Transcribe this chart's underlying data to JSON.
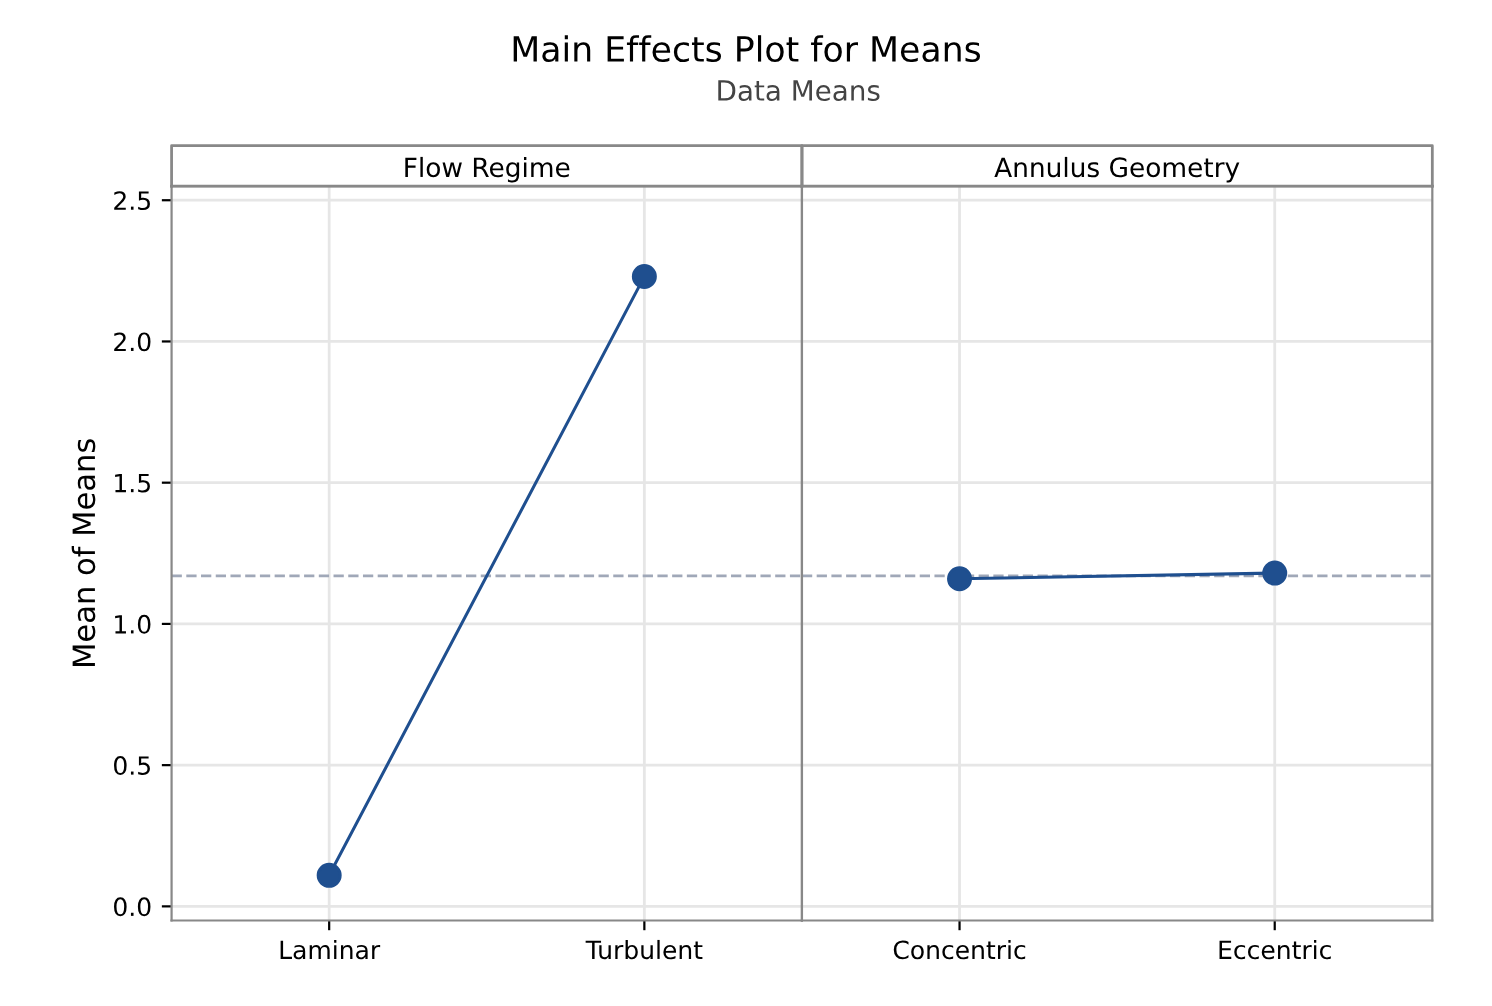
{
  "chart_data": [
    {
      "type": "line",
      "title": "Main Effects Plot for Means",
      "subtitle": "Data Means",
      "annotations": [
        "Flow Regime"
      ],
      "ylabel": "Mean of Means",
      "categories": [
        "Laminar",
        "Turbulent"
      ],
      "series": [
        {
          "color": "#1f4f8f",
          "values": [
            0.11,
            2.23
          ]
        }
      ],
      "ylim": [
        -0.05,
        2.55
      ],
      "yticks": [
        {
          "value": 0,
          "label": "0.0"
        },
        0.5,
        {
          "value": 1,
          "label": "1.0"
        },
        1.5,
        {
          "value": 2,
          "label": "2.0"
        },
        2.5
      ],
      "grid": true,
      "marker": "circle",
      "line_style": "solid",
      "ref_lines": [
        {
          "axis": "y",
          "value": 1.17,
          "color": "#a0a8b8",
          "line_style": "dashed"
        }
      ]
    },
    {
      "type": "line",
      "annotations": [
        "Annulus Geometry"
      ],
      "categories": [
        "Concentric",
        "Eccentric"
      ],
      "series": [
        {
          "color": "#1f4f8f",
          "values": [
            1.16,
            1.18
          ]
        }
      ],
      "ylim": [
        -0.05,
        2.55
      ],
      "yticks": [
        0,
        0.5,
        1,
        1.5,
        2,
        2.5
      ],
      "grid": true,
      "marker": "circle",
      "line_style": "solid",
      "tick_labels": "x",
      "ref_lines": [
        {
          "axis": "y",
          "value": 1.17,
          "color": "#a0a8b8",
          "line_style": "dashed"
        }
      ]
    }
  ]
}
